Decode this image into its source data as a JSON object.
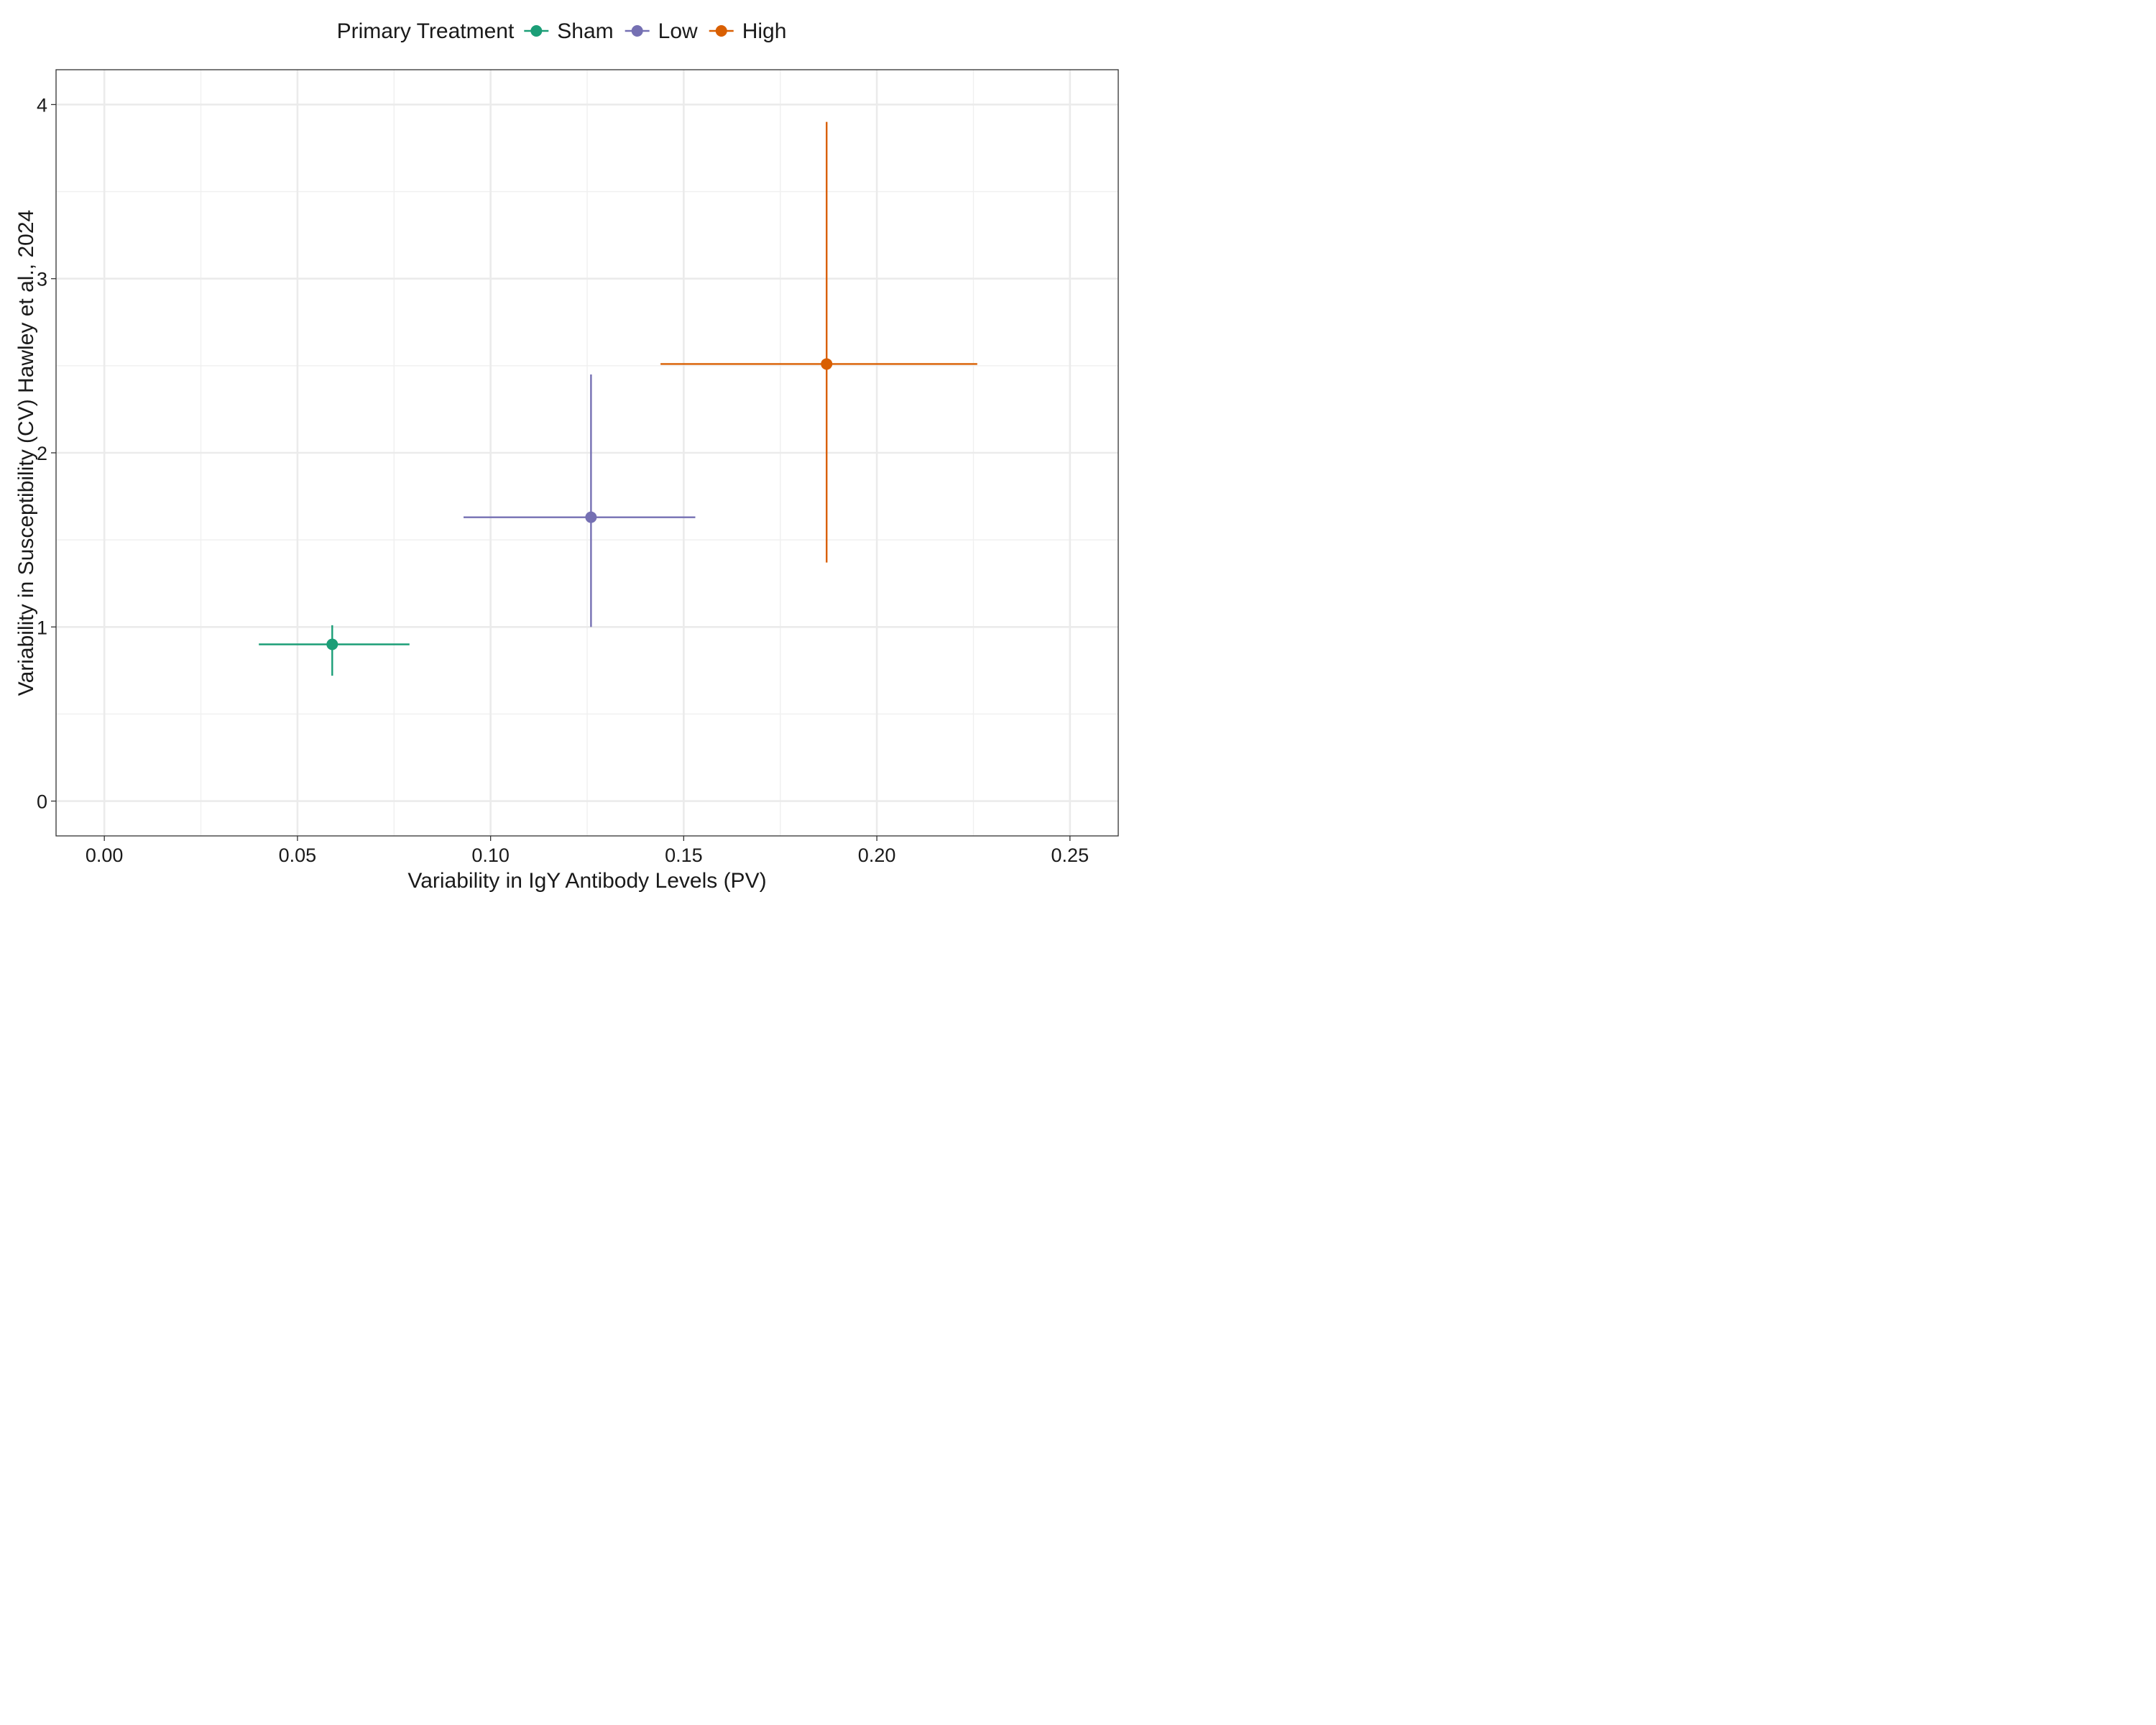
{
  "chart_data": {
    "type": "scatter",
    "xlabel": "Variability in IgY Antibody Levels (PV)",
    "ylabel": "Variability in Susceptibility (CV) Hawley et al., 2024",
    "xlim": [
      -0.0125,
      0.2625
    ],
    "ylim": [
      -0.2,
      4.2
    ],
    "x_ticks": [
      "0.00",
      "0.05",
      "0.10",
      "0.15",
      "0.20",
      "0.25"
    ],
    "y_ticks": [
      "0",
      "1",
      "2",
      "3",
      "4"
    ],
    "grid": true,
    "legend": {
      "title": "Primary Treatment",
      "placement": "top"
    },
    "series": [
      {
        "name": "Sham",
        "color": "#1b9e77",
        "x": 0.059,
        "y": 0.9,
        "x_err": [
          0.04,
          0.079
        ],
        "y_err": [
          0.72,
          1.01
        ]
      },
      {
        "name": "Low",
        "color": "#7570b3",
        "x": 0.126,
        "y": 1.63,
        "x_err": [
          0.093,
          0.153
        ],
        "y_err": [
          1.0,
          2.45
        ]
      },
      {
        "name": "High",
        "color": "#d95f02",
        "x": 0.187,
        "y": 2.51,
        "x_err": [
          0.144,
          0.226
        ],
        "y_err": [
          1.37,
          3.9
        ]
      }
    ]
  }
}
